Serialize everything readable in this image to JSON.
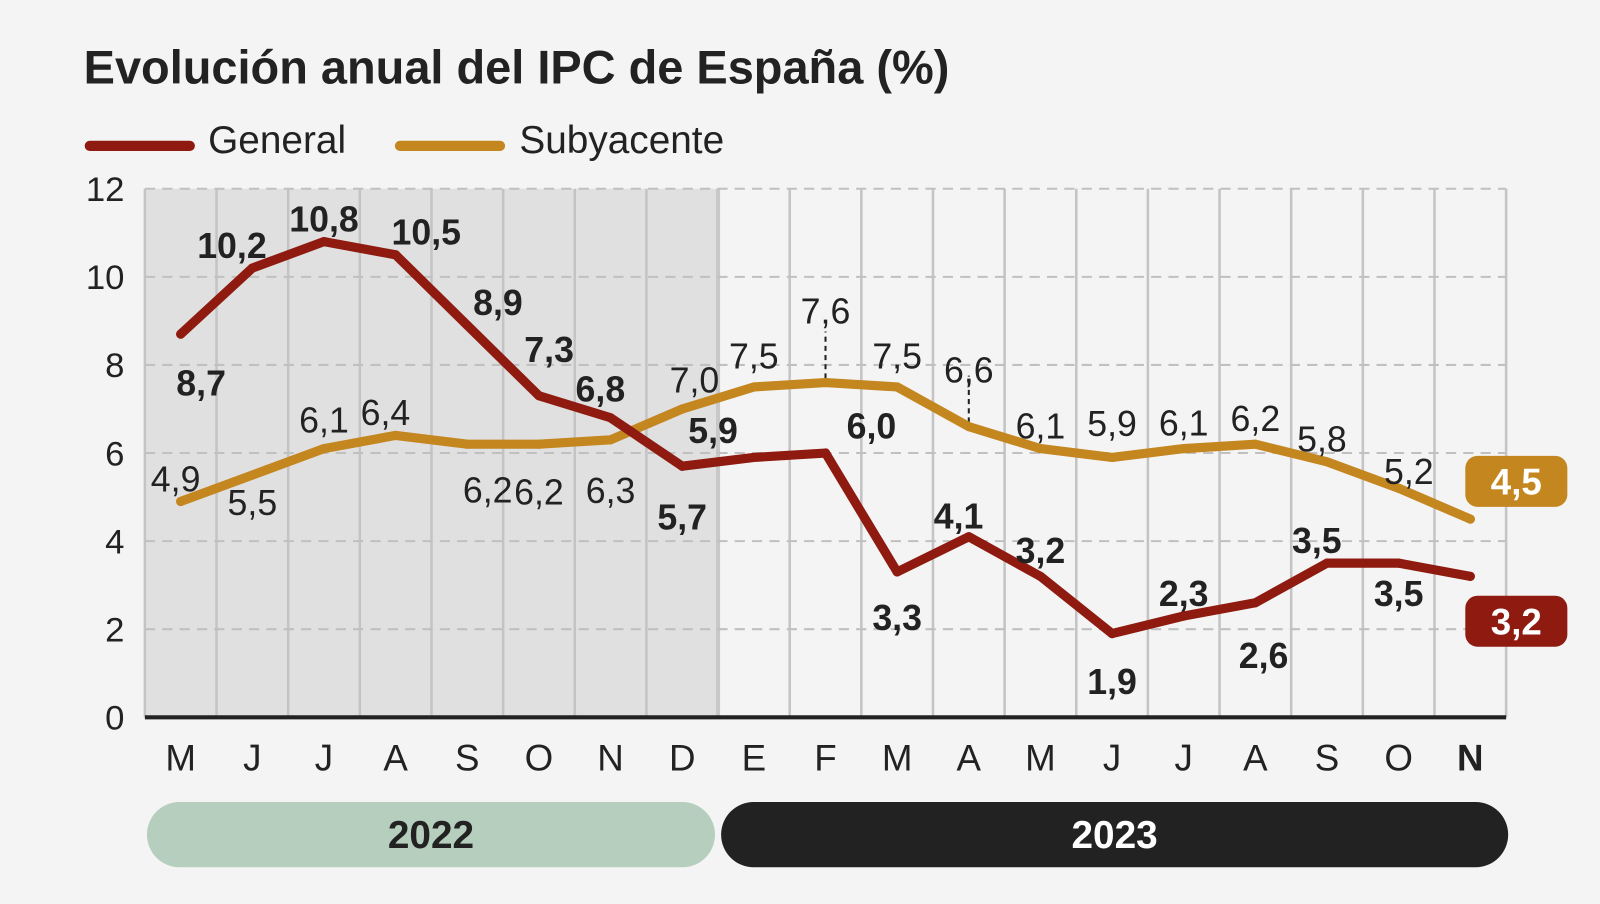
{
  "chart_data": {
    "type": "line",
    "title": "Evolución anual del IPC de España (%)",
    "categories": [
      "M",
      "J",
      "J",
      "A",
      "S",
      "O",
      "N",
      "D",
      "E",
      "F",
      "M",
      "A",
      "M",
      "J",
      "J",
      "A",
      "S",
      "O",
      "N"
    ],
    "year_groups": [
      {
        "label": "2022",
        "count": 8,
        "color": "#b5cebd",
        "text_color": "#222222"
      },
      {
        "label": "2023",
        "count": 11,
        "color": "#222222",
        "text_color": "#ffffff"
      }
    ],
    "highlighted_category_index": 18,
    "series": [
      {
        "name": "General",
        "color": "#8e1a10",
        "values": [
          8.7,
          10.2,
          10.8,
          10.5,
          8.9,
          7.3,
          6.8,
          5.7,
          5.9,
          6.0,
          3.3,
          4.1,
          3.2,
          1.9,
          2.3,
          2.6,
          3.5,
          3.5,
          3.2
        ],
        "labels": [
          "8,7",
          "10,2",
          "10,8",
          "10,5",
          "8,9",
          "7,3",
          "6,8",
          "5,7",
          "5,9",
          "6,0",
          "3,3",
          "4,1",
          "3,2",
          "1,9",
          "2,3",
          "2,6",
          "3,5",
          "3,5",
          "3,2"
        ]
      },
      {
        "name": "Subyacente",
        "color": "#c4861f",
        "values": [
          4.9,
          5.5,
          6.1,
          6.4,
          6.2,
          6.2,
          6.3,
          7.0,
          7.5,
          7.6,
          7.5,
          6.6,
          6.1,
          5.9,
          6.1,
          6.2,
          5.8,
          5.2,
          4.5
        ],
        "labels": [
          "4,9",
          "5,5",
          "6,1",
          "6,4",
          "6,2",
          "6,2",
          "6,3",
          "7,0",
          "7,5",
          "7,6",
          "7,5",
          "6,6",
          "6,1",
          "5,9",
          "6,1",
          "6,2",
          "5,8",
          "5,2",
          "4,5"
        ]
      }
    ],
    "ylim": [
      0,
      12
    ],
    "yticks": [
      "0",
      "2",
      "4",
      "6",
      "8",
      "10",
      "12"
    ],
    "grid": true,
    "shaded_period": "2022",
    "legend_position": "top-left"
  }
}
